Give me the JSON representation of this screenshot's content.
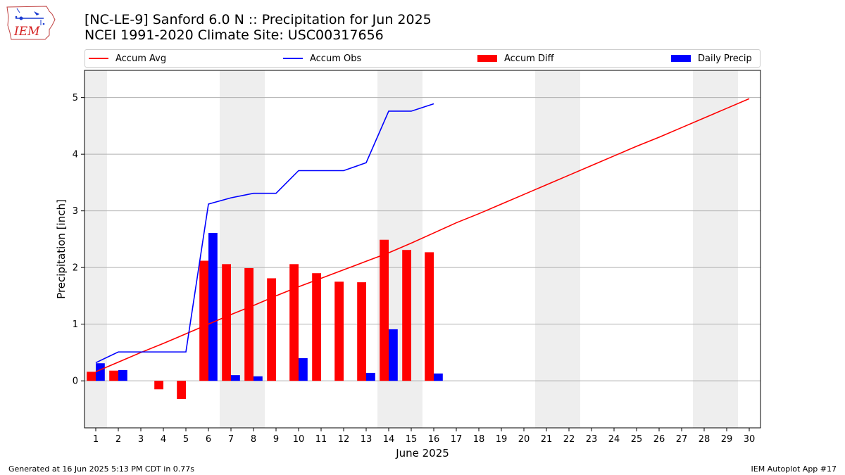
{
  "title_line1": "[NC-LE-9] Sanford 6.0 N :: Precipitation for Jun 2025",
  "title_line2": "NCEI 1991-2020 Climate Site: USC00317656",
  "logo_text": "IEM",
  "footer_left": "Generated at 16 Jun 2025 5:13 PM CDT in 0.77s",
  "footer_right": "IEM Autoplot App #17",
  "colors": {
    "accum_avg": "#ff0000",
    "accum_obs": "#0000ff",
    "accum_diff": "#ff0000",
    "daily_precip": "#0000ff",
    "weekend_shade": "#eeeeee",
    "grid": "#b0b0b0"
  },
  "chart_data": {
    "type": "bar",
    "xlabel": "June 2025",
    "ylabel": "Precipitation [inch]",
    "xlim": [
      0.5,
      30.5
    ],
    "ylim": [
      -0.83,
      5.48
    ],
    "x_ticks": [
      1,
      2,
      3,
      4,
      5,
      6,
      7,
      8,
      9,
      10,
      11,
      12,
      13,
      14,
      15,
      16,
      17,
      18,
      19,
      20,
      21,
      22,
      23,
      24,
      25,
      26,
      27,
      28,
      29,
      30
    ],
    "y_ticks": [
      0,
      1,
      2,
      3,
      4,
      5
    ],
    "grid": "horizontal",
    "legend_position": "top",
    "shaded_days": [
      1,
      7,
      8,
      14,
      15,
      21,
      22,
      28,
      29
    ],
    "legend": [
      "Accum Avg",
      "Accum Obs",
      "Accum Diff",
      "Daily Precip"
    ],
    "series": [
      {
        "name": "Accum Avg",
        "kind": "line",
        "x": [
          1,
          2,
          3,
          4,
          5,
          6,
          7,
          8,
          9,
          10,
          11,
          12,
          13,
          14,
          15,
          16,
          17,
          18,
          19,
          20,
          21,
          22,
          23,
          24,
          25,
          26,
          27,
          28,
          29,
          30
        ],
        "values": [
          0.16,
          0.33,
          0.5,
          0.66,
          0.83,
          1.0,
          1.17,
          1.33,
          1.5,
          1.66,
          1.81,
          1.96,
          2.11,
          2.26,
          2.43,
          2.61,
          2.79,
          2.95,
          3.12,
          3.29,
          3.46,
          3.63,
          3.8,
          3.97,
          4.14,
          4.3,
          4.47,
          4.64,
          4.81,
          4.98
        ]
      },
      {
        "name": "Accum Obs",
        "kind": "line",
        "x": [
          1,
          2,
          3,
          4,
          5,
          6,
          7,
          8,
          9,
          10,
          11,
          12,
          13,
          14,
          15,
          16
        ],
        "values": [
          0.32,
          0.51,
          0.51,
          0.51,
          0.51,
          3.12,
          3.23,
          3.31,
          3.31,
          3.71,
          3.71,
          3.71,
          3.85,
          4.76,
          4.76,
          4.89
        ]
      },
      {
        "name": "Accum Diff",
        "kind": "bar",
        "x": [
          1,
          2,
          3,
          4,
          5,
          6,
          7,
          8,
          9,
          10,
          11,
          12,
          13,
          14,
          15,
          16
        ],
        "values": [
          0.16,
          0.18,
          0.0,
          -0.15,
          -0.32,
          2.12,
          2.06,
          1.99,
          1.81,
          2.06,
          1.9,
          1.75,
          1.74,
          2.49,
          2.31,
          2.27
        ]
      },
      {
        "name": "Daily Precip",
        "kind": "bar",
        "x": [
          1,
          2,
          3,
          4,
          5,
          6,
          7,
          8,
          9,
          10,
          11,
          12,
          13,
          14,
          15,
          16
        ],
        "values": [
          0.31,
          0.19,
          0,
          0,
          0,
          2.61,
          0.1,
          0.08,
          0,
          0.4,
          0,
          0,
          0.14,
          0.91,
          0,
          0.13
        ]
      }
    ]
  }
}
